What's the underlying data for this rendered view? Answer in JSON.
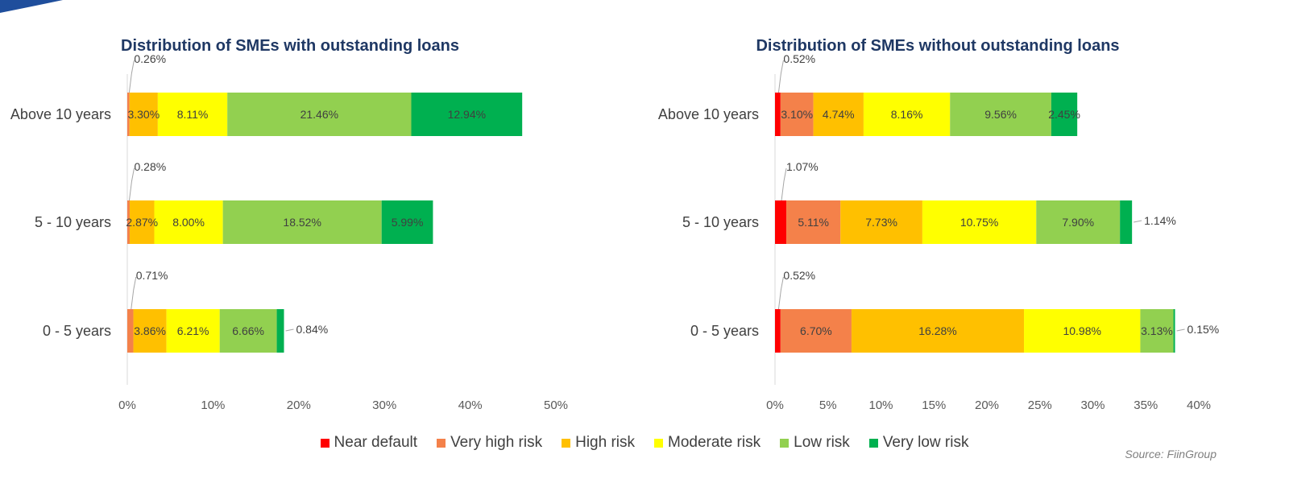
{
  "chart_data": [
    {
      "type": "bar",
      "orientation": "horizontal",
      "stacked": true,
      "title": "Distribution of SMEs with outstanding loans",
      "categories": [
        "Above 10 years",
        "5 - 10 years",
        "0 - 5 years"
      ],
      "xlim": [
        0,
        50
      ],
      "xticks": [
        0,
        10,
        20,
        30,
        40,
        50
      ],
      "xtick_labels": [
        "0%",
        "10%",
        "20%",
        "30%",
        "40%",
        "50%"
      ],
      "series": [
        {
          "name": "Near default",
          "color": "#ff0000",
          "values": [
            0,
            0,
            0
          ]
        },
        {
          "name": "Very high risk",
          "color": "#f4814a",
          "values": [
            0.26,
            0.28,
            0.71
          ]
        },
        {
          "name": "High risk",
          "color": "#ffc000",
          "values": [
            3.3,
            2.87,
            3.86
          ]
        },
        {
          "name": "Moderate risk",
          "color": "#ffff00",
          "values": [
            8.11,
            8.0,
            6.21
          ]
        },
        {
          "name": "Low risk",
          "color": "#92d050",
          "values": [
            21.46,
            18.52,
            6.66
          ]
        },
        {
          "name": "Very low risk",
          "color": "#00b050",
          "values": [
            12.94,
            5.99,
            0.84
          ]
        }
      ],
      "labels": [
        [
          null,
          "0.26%",
          "3.30%",
          "8.11%",
          "21.46%",
          "12.94%"
        ],
        [
          null,
          "0.28%",
          "2.87%",
          "8.00%",
          "18.52%",
          "5.99%"
        ],
        [
          null,
          "0.71%",
          "3.86%",
          "6.21%",
          "6.66%",
          "0.84%"
        ]
      ]
    },
    {
      "type": "bar",
      "orientation": "horizontal",
      "stacked": true,
      "title": "Distribution of SMEs without outstanding loans",
      "categories": [
        "Above 10 years",
        "5 - 10 years",
        "0 - 5 years"
      ],
      "xlim": [
        0,
        40
      ],
      "xticks": [
        0,
        5,
        10,
        15,
        20,
        25,
        30,
        35,
        40
      ],
      "xtick_labels": [
        "0%",
        "5%",
        "10%",
        "15%",
        "20%",
        "25%",
        "30%",
        "35%",
        "40%"
      ],
      "series": [
        {
          "name": "Near default",
          "color": "#ff0000",
          "values": [
            0.52,
            1.07,
            0.52
          ]
        },
        {
          "name": "Very high risk",
          "color": "#f4814a",
          "values": [
            3.1,
            5.11,
            6.7
          ]
        },
        {
          "name": "High risk",
          "color": "#ffc000",
          "values": [
            4.74,
            7.73,
            16.28
          ]
        },
        {
          "name": "Moderate risk",
          "color": "#ffff00",
          "values": [
            8.16,
            10.75,
            10.98
          ]
        },
        {
          "name": "Low risk",
          "color": "#92d050",
          "values": [
            9.56,
            7.9,
            3.13
          ]
        },
        {
          "name": "Very low risk",
          "color": "#00b050",
          "values": [
            2.45,
            1.14,
            0.15
          ]
        }
      ],
      "labels": [
        [
          "0.52%",
          "3.10%",
          "4.74%",
          "8.16%",
          "9.56%",
          "2.45%"
        ],
        [
          "1.07%",
          "5.11%",
          "7.73%",
          "10.75%",
          "7.90%",
          "1.14%"
        ],
        [
          "0.52%",
          "6.70%",
          "16.28%",
          "10.98%",
          "3.13%",
          "0.15%"
        ]
      ]
    }
  ],
  "legend": [
    {
      "label": "Near default",
      "color": "#ff0000"
    },
    {
      "label": "Very high risk",
      "color": "#f4814a"
    },
    {
      "label": "High risk",
      "color": "#ffc000"
    },
    {
      "label": "Moderate risk",
      "color": "#ffff00"
    },
    {
      "label": "Low risk",
      "color": "#92d050"
    },
    {
      "label": "Very low risk",
      "color": "#00b050"
    }
  ],
  "source": "Source: FiinGroup",
  "colors": {
    "title": "#1f3864",
    "text": "#404040",
    "axis": "#d9d9d9",
    "corner_accent": "#1f4e9c"
  }
}
